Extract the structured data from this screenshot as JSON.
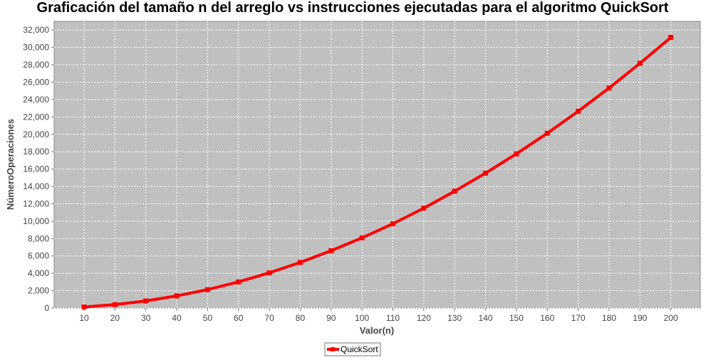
{
  "chart_data": {
    "type": "line",
    "title": "Graficación del tamaño n del arreglo vs instrucciones ejecutadas para el algoritmo QuickSort",
    "xlabel": "Valor(n)",
    "ylabel": "NúmeroOperaciones",
    "categories": [
      "10",
      "20",
      "30",
      "40",
      "50",
      "60",
      "70",
      "80",
      "90",
      "100",
      "110",
      "120",
      "130",
      "140",
      "150",
      "160",
      "170",
      "180",
      "190",
      "200"
    ],
    "series": [
      {
        "name": "QuickSort",
        "color": "#ff0000",
        "values": [
          120,
          400,
          820,
          1400,
          2120,
          3010,
          4060,
          5250,
          6600,
          8080,
          9700,
          11500,
          13450,
          15530,
          17750,
          20120,
          22650,
          25330,
          28170,
          31150
        ]
      }
    ],
    "ylim": [
      0,
      33000
    ],
    "yticks": [
      0,
      2000,
      4000,
      6000,
      8000,
      10000,
      12000,
      14000,
      16000,
      18000,
      20000,
      22000,
      24000,
      26000,
      28000,
      30000,
      32000
    ],
    "grid": true,
    "plot_background": "#c0c0c0",
    "legend_position": "bottom-center"
  }
}
